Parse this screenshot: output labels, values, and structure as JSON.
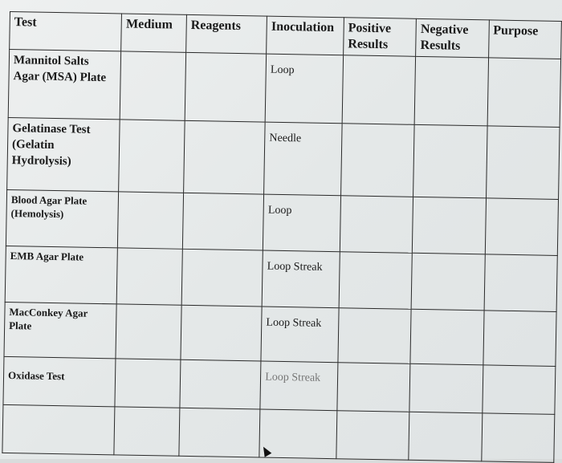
{
  "headers": [
    "Test",
    "Medium",
    "Reagents",
    "Inoculation",
    "Positive Results",
    "Negative Results",
    "Purpose"
  ],
  "rows": [
    {
      "test": "Mannitol Salts Agar (MSA) Plate",
      "inoculation": "Loop"
    },
    {
      "test": "Gelatinase Test (Gelatin Hydrolysis)",
      "inoculation": "Needle"
    },
    {
      "test": "Blood Agar Plate (Hemolysis)",
      "inoculation": "Loop"
    },
    {
      "test": "EMB Agar Plate",
      "inoculation": "Loop Streak"
    },
    {
      "test": "MacConkey Agar Plate",
      "inoculation": "Loop Streak"
    },
    {
      "test": "Oxidase Test",
      "inoculation": "Loop Streak"
    },
    {
      "test": "",
      "inoculation": ""
    }
  ]
}
